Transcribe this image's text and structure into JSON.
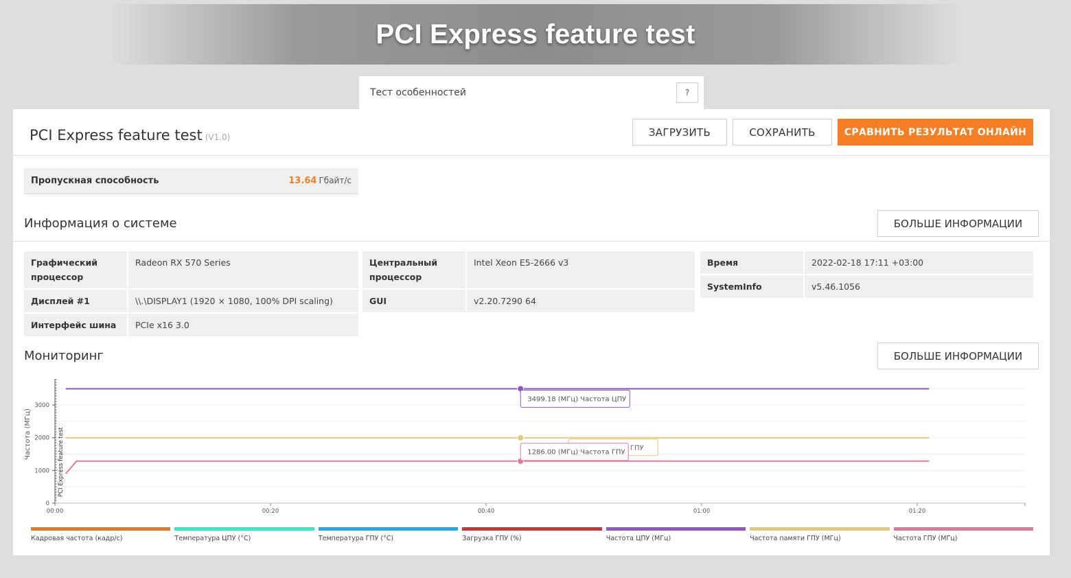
{
  "hero": {
    "title": "PCI Express feature test"
  },
  "selector": {
    "value": "Тест особенностей",
    "help": "?"
  },
  "panel": {
    "title": "PCI Express feature test",
    "version": "(V1.0)"
  },
  "toolbar": {
    "load_label": "ЗАГРУЗИТЬ",
    "save_label": "СОХРАНИТЬ",
    "compare_label": "СРАВНИТЬ РЕЗУЛЬТАТ ОНЛАЙН",
    "accent": "#f57f22"
  },
  "metric": {
    "label": "Пропускная способность",
    "value": "13.64",
    "unit": "Гбайт/с"
  },
  "sysinfo": {
    "title": "Информация о системе",
    "more_label": "БОЛЬШЕ ИНФОРМАЦИИ",
    "col1": [
      {
        "k": "Графический процессор",
        "v": "Radeon RX 570 Series"
      },
      {
        "k": "Дисплей #1",
        "v": "\\\\.\\DISPLAY1 (1920 × 1080, 100% DPI scaling)"
      },
      {
        "k": "Интерфейс шина",
        "v": "PCIe x16 3.0"
      }
    ],
    "col2": [
      {
        "k": "Центральный процессор",
        "v": "Intel Xeon E5-2666 v3"
      },
      {
        "k": "GUI",
        "v": "v2.20.7290 64"
      }
    ],
    "col3": [
      {
        "k": "Время",
        "v": "2022-02-18 17:11 +03:00"
      },
      {
        "k": "SystemInfo",
        "v": "v5.46.1056"
      }
    ]
  },
  "monitoring": {
    "title": "Мониторинг",
    "more_label": "БОЛЬШЕ ИНФОРМАЦИИ"
  },
  "chart_data": {
    "type": "line",
    "ylabel": "Частота (МГц)",
    "band_label": "PCI Express feature test",
    "ylim": [
      0,
      3800
    ],
    "yticks": [
      0,
      1000,
      2000,
      3000
    ],
    "ytick_labels": [
      "0",
      "1000",
      "2000",
      "3000"
    ],
    "xlim": [
      0,
      90
    ],
    "xticks": [
      0,
      20,
      40,
      60,
      80
    ],
    "xtick_labels": [
      "00:00",
      "00:20",
      "00:40",
      "01:00",
      "01:20"
    ],
    "grid": true,
    "series": [
      {
        "name": "Частота ЦПУ (МГц)",
        "color": "#9056c4",
        "x": [
          1,
          81.1
        ],
        "y": [
          3499.18,
          3499.18
        ]
      },
      {
        "name": "Частота памяти ГПУ (МГц)",
        "color": "#e2c880",
        "x": [
          1,
          81.1
        ],
        "y": [
          2000,
          2000
        ]
      },
      {
        "name": "Частота ГПУ (МГц)",
        "color": "#dd7a9e",
        "x": [
          1,
          2,
          81.1
        ],
        "y": [
          900,
          1286,
          1286
        ]
      }
    ],
    "cursor_x": 43.2,
    "tooltips": [
      {
        "text": "3499.18 (МГц) Частота ЦПУ",
        "color": "#9056c4",
        "y": 3499.18
      },
      {
        "text": "1286.00 (МГц) Частота ГПУ",
        "color": "#dd7a9e",
        "y": 1286
      }
    ],
    "hidden_tooltip_text": "и ГПУ",
    "legend": [
      {
        "name": "Кадровая частота (кадр/с)",
        "color": "#e07b2c"
      },
      {
        "name": "Температура ЦПУ (°C)",
        "color": "#3ee8c0"
      },
      {
        "name": "Температура ГПУ (°C)",
        "color": "#2aa4e6"
      },
      {
        "name": "Загрузка ГПУ (%)",
        "color": "#c0393b"
      },
      {
        "name": "Частота ЦПУ (МГц)",
        "color": "#9056c4"
      },
      {
        "name": "Частота памяти ГПУ (МГц)",
        "color": "#e2c880"
      },
      {
        "name": "Частота ГПУ (МГц)",
        "color": "#dd7a9e"
      }
    ]
  }
}
